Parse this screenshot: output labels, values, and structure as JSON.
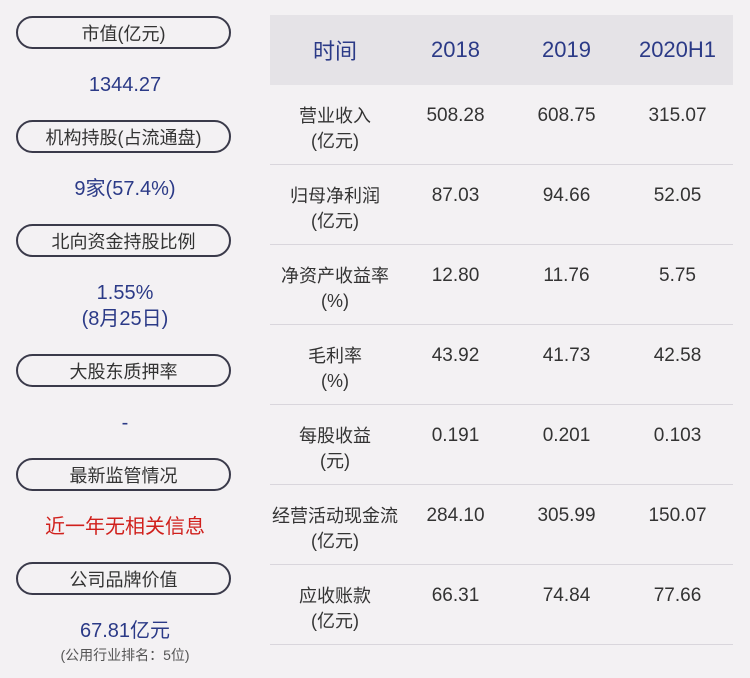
{
  "left": {
    "items": [
      {
        "label": "市值(亿元)",
        "value": "1344.27"
      },
      {
        "label": "机构持股(占流通盘)",
        "value": "9家(57.4%)"
      },
      {
        "label": "北向资金持股比例",
        "value": "1.55%",
        "value2": "(8月25日)"
      },
      {
        "label": "大股东质押率",
        "value": "-"
      },
      {
        "label": "最新监管情况",
        "value": "近一年无相关信息"
      },
      {
        "label": "公司品牌价值",
        "value": "67.81亿元",
        "sub": "(公用行业排名：5位)"
      }
    ]
  },
  "table": {
    "headers": [
      "时间",
      "2018",
      "2019",
      "2020H1"
    ],
    "rows": [
      {
        "name": "营业收入",
        "unit": "(亿元)",
        "values": [
          "508.28",
          "608.75",
          "315.07"
        ]
      },
      {
        "name": "归母净利润",
        "unit": "(亿元)",
        "values": [
          "87.03",
          "94.66",
          "52.05"
        ]
      },
      {
        "name": "净资产收益率",
        "unit": "(%)",
        "values": [
          "12.80",
          "11.76",
          "5.75"
        ]
      },
      {
        "name": "毛利率",
        "unit": "(%)",
        "values": [
          "43.92",
          "41.73",
          "42.58"
        ]
      },
      {
        "name": "每股收益",
        "unit": "(元)",
        "values": [
          "0.191",
          "0.201",
          "0.103"
        ]
      },
      {
        "name": "经营活动现金流",
        "unit": "(亿元)",
        "values": [
          "284.10",
          "305.99",
          "150.07"
        ]
      },
      {
        "name": "应收账款",
        "unit": "(亿元)",
        "values": [
          "66.31",
          "74.84",
          "77.66"
        ]
      }
    ]
  },
  "colors": {
    "background": "#f3f1f3",
    "header_bg": "#e5e3e7",
    "accent_blue": "#2b3a87",
    "alert_red": "#d0201c"
  }
}
